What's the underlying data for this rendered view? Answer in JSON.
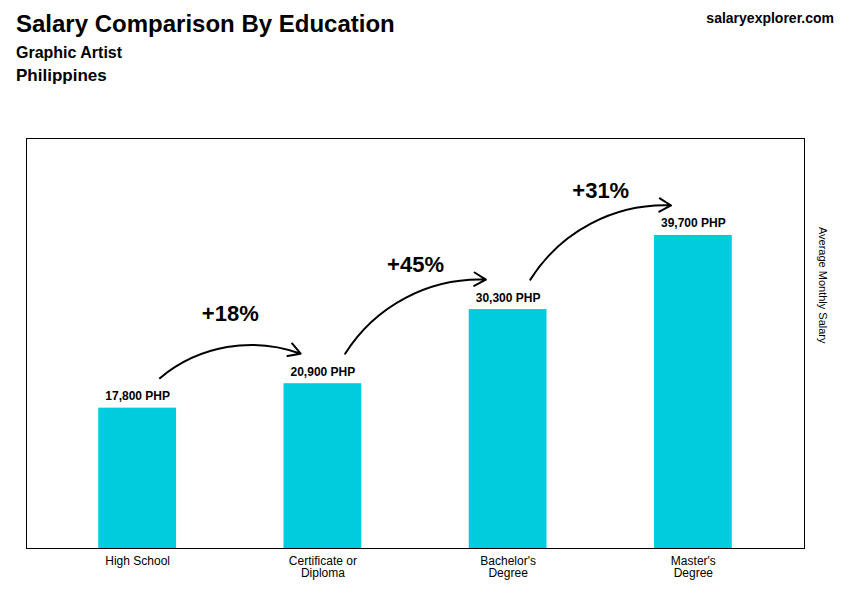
{
  "chart_data": {
    "type": "bar",
    "title": "Salary Comparison By Education",
    "subtitle": "Graphic Artist",
    "annotations": [
      {
        "text": "Philippines"
      },
      {
        "text": "salaryexplorer.com"
      },
      {
        "text": "+18%",
        "from": "High School",
        "to": "Certificate or\nDiploma"
      },
      {
        "text": "+45%",
        "from": "Certificate or\nDiploma",
        "to": "Bachelor's\nDegree"
      },
      {
        "text": "+31%",
        "from": "Bachelor's\nDegree",
        "to": "Master's\nDegree"
      }
    ],
    "categories": [
      "High School",
      "Certificate or\nDiploma",
      "Bachelor's\nDegree",
      "Master's\nDegree"
    ],
    "values": [
      17800,
      20900,
      30300,
      39700
    ],
    "value_labels": [
      "17,800 PHP",
      "20,900 PHP",
      "30,300 PHP",
      "39,700 PHP"
    ],
    "data_labels": true,
    "color": "#00ccdd",
    "ylabel": "Average Monthly Salary",
    "ylim": [
      0,
      52000
    ],
    "tick_labels": "x",
    "grid": false
  }
}
